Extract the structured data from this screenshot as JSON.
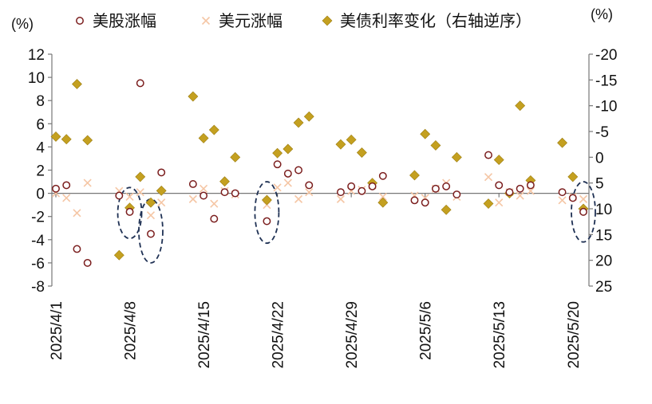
{
  "chart_data": {
    "type": "scatter",
    "left_unit": "(%)",
    "right_unit": "(%)",
    "y_left_range": [
      -8,
      12
    ],
    "y_left_ticks": [
      "12",
      "10",
      "8",
      "6",
      "4",
      "2",
      "0",
      "-2",
      "-4",
      "-6",
      "-8"
    ],
    "y_right_range": [
      25,
      -20
    ],
    "y_right_ticks": [
      "-20",
      "-15",
      "-10",
      "-5",
      "0",
      "5",
      "10",
      "15",
      "20",
      "25"
    ],
    "x_range": [
      "2025/4/1",
      "2025/5/21"
    ],
    "x_ticks": [
      "2025/4/1",
      "2025/4/8",
      "2025/4/15",
      "2025/4/22",
      "2025/4/29",
      "2025/5/6",
      "2025/5/13",
      "2025/5/20"
    ],
    "series": [
      {
        "name": "美股涨幅",
        "axis": "left",
        "marker": "hollow-circle",
        "color": "#7B1E1E",
        "points": [
          [
            "2025/4/1",
            0.4
          ],
          [
            "2025/4/2",
            0.7
          ],
          [
            "2025/4/3",
            -4.8
          ],
          [
            "2025/4/4",
            -6.0
          ],
          [
            "2025/4/7",
            -0.2
          ],
          [
            "2025/4/8",
            -1.6
          ],
          [
            "2025/4/9",
            9.5
          ],
          [
            "2025/4/10",
            -3.5
          ],
          [
            "2025/4/11",
            1.8
          ],
          [
            "2025/4/14",
            0.8
          ],
          [
            "2025/4/15",
            -0.2
          ],
          [
            "2025/4/16",
            -2.2
          ],
          [
            "2025/4/17",
            0.1
          ],
          [
            "2025/4/18",
            0.0
          ],
          [
            "2025/4/21",
            -2.4
          ],
          [
            "2025/4/22",
            2.5
          ],
          [
            "2025/4/23",
            1.7
          ],
          [
            "2025/4/24",
            2.0
          ],
          [
            "2025/4/25",
            0.7
          ],
          [
            "2025/4/28",
            0.1
          ],
          [
            "2025/4/29",
            0.6
          ],
          [
            "2025/4/30",
            0.2
          ],
          [
            "2025/5/1",
            0.6
          ],
          [
            "2025/5/2",
            1.5
          ],
          [
            "2025/5/5",
            -0.6
          ],
          [
            "2025/5/6",
            -0.8
          ],
          [
            "2025/5/7",
            0.4
          ],
          [
            "2025/5/8",
            0.6
          ],
          [
            "2025/5/9",
            -0.1
          ],
          [
            "2025/5/12",
            3.3
          ],
          [
            "2025/5/13",
            0.7
          ],
          [
            "2025/5/14",
            0.1
          ],
          [
            "2025/5/15",
            0.4
          ],
          [
            "2025/5/16",
            0.7
          ],
          [
            "2025/5/19",
            0.1
          ],
          [
            "2025/5/20",
            -0.4
          ],
          [
            "2025/5/21",
            -1.6
          ]
        ]
      },
      {
        "name": "美元涨幅",
        "axis": "left",
        "marker": "x",
        "color": "#F5C6A5",
        "points": [
          [
            "2025/4/1",
            0.0
          ],
          [
            "2025/4/2",
            -0.4
          ],
          [
            "2025/4/3",
            -1.7
          ],
          [
            "2025/4/4",
            0.9
          ],
          [
            "2025/4/7",
            0.2
          ],
          [
            "2025/4/8",
            -0.3
          ],
          [
            "2025/4/9",
            0.1
          ],
          [
            "2025/4/10",
            -1.9
          ],
          [
            "2025/4/11",
            -0.8
          ],
          [
            "2025/4/14",
            -0.5
          ],
          [
            "2025/4/15",
            0.4
          ],
          [
            "2025/4/16",
            -0.9
          ],
          [
            "2025/4/17",
            0.2
          ],
          [
            "2025/4/18",
            -0.1
          ],
          [
            "2025/4/21",
            -1.0
          ],
          [
            "2025/4/22",
            0.5
          ],
          [
            "2025/4/23",
            0.9
          ],
          [
            "2025/4/24",
            -0.5
          ],
          [
            "2025/4/25",
            0.1
          ],
          [
            "2025/4/28",
            -0.5
          ],
          [
            "2025/4/29",
            0.2
          ],
          [
            "2025/4/30",
            0.3
          ],
          [
            "2025/5/1",
            0.7
          ],
          [
            "2025/5/2",
            -0.3
          ],
          [
            "2025/5/5",
            -0.2
          ],
          [
            "2025/5/6",
            -0.4
          ],
          [
            "2025/5/7",
            0.4
          ],
          [
            "2025/5/8",
            0.9
          ],
          [
            "2025/5/9",
            -0.3
          ],
          [
            "2025/5/12",
            1.4
          ],
          [
            "2025/5/13",
            -0.8
          ],
          [
            "2025/5/14",
            0.1
          ],
          [
            "2025/5/15",
            -0.2
          ],
          [
            "2025/5/16",
            0.2
          ],
          [
            "2025/5/19",
            -0.6
          ],
          [
            "2025/5/20",
            -0.3
          ],
          [
            "2025/5/21",
            -0.5
          ]
        ]
      },
      {
        "name": "美债利率变化（右轴逆序）",
        "axis": "right",
        "marker": "diamond",
        "color": "#C4A020",
        "points": [
          [
            "2025/4/1",
            -4.0
          ],
          [
            "2025/4/2",
            -3.5
          ],
          [
            "2025/4/3",
            -14.2
          ],
          [
            "2025/4/4",
            -3.3
          ],
          [
            "2025/4/7",
            19.0
          ],
          [
            "2025/4/8",
            9.8
          ],
          [
            "2025/4/9",
            3.8
          ],
          [
            "2025/4/10",
            8.8
          ],
          [
            "2025/4/11",
            6.5
          ],
          [
            "2025/4/14",
            -11.8
          ],
          [
            "2025/4/15",
            -3.7
          ],
          [
            "2025/4/16",
            -5.3
          ],
          [
            "2025/4/17",
            4.7
          ],
          [
            "2025/4/18",
            0.0
          ],
          [
            "2025/4/21",
            8.3
          ],
          [
            "2025/4/22",
            -0.8
          ],
          [
            "2025/4/23",
            -1.6
          ],
          [
            "2025/4/24",
            -6.7
          ],
          [
            "2025/4/25",
            -7.9
          ],
          [
            "2025/4/28",
            -2.5
          ],
          [
            "2025/4/29",
            -3.4
          ],
          [
            "2025/4/30",
            -0.9
          ],
          [
            "2025/5/1",
            5.0
          ],
          [
            "2025/5/2",
            8.8
          ],
          [
            "2025/5/5",
            3.5
          ],
          [
            "2025/5/6",
            -4.5
          ],
          [
            "2025/5/7",
            -2.3
          ],
          [
            "2025/5/8",
            10.2
          ],
          [
            "2025/5/9",
            0.0
          ],
          [
            "2025/5/12",
            9.0
          ],
          [
            "2025/5/13",
            0.5
          ],
          [
            "2025/5/14",
            7.0
          ],
          [
            "2025/5/15",
            -10.0
          ],
          [
            "2025/5/16",
            4.5
          ],
          [
            "2025/5/19",
            -2.8
          ],
          [
            "2025/5/20",
            3.8
          ],
          [
            "2025/5/21",
            10.0
          ]
        ]
      }
    ],
    "highlights": [
      {
        "center_date": "2025/4/8",
        "y_low": -3.9,
        "y_high": 0.5
      },
      {
        "center_date": "2025/4/10",
        "y_low": -6.0,
        "y_high": -0.5
      },
      {
        "center_date": "2025/4/21",
        "y_low": -4.3,
        "y_high": 1.0
      },
      {
        "center_date": "2025/5/21",
        "y_low": -4.2,
        "y_high": 1.0
      }
    ],
    "grid": false,
    "legend_position": "top"
  }
}
